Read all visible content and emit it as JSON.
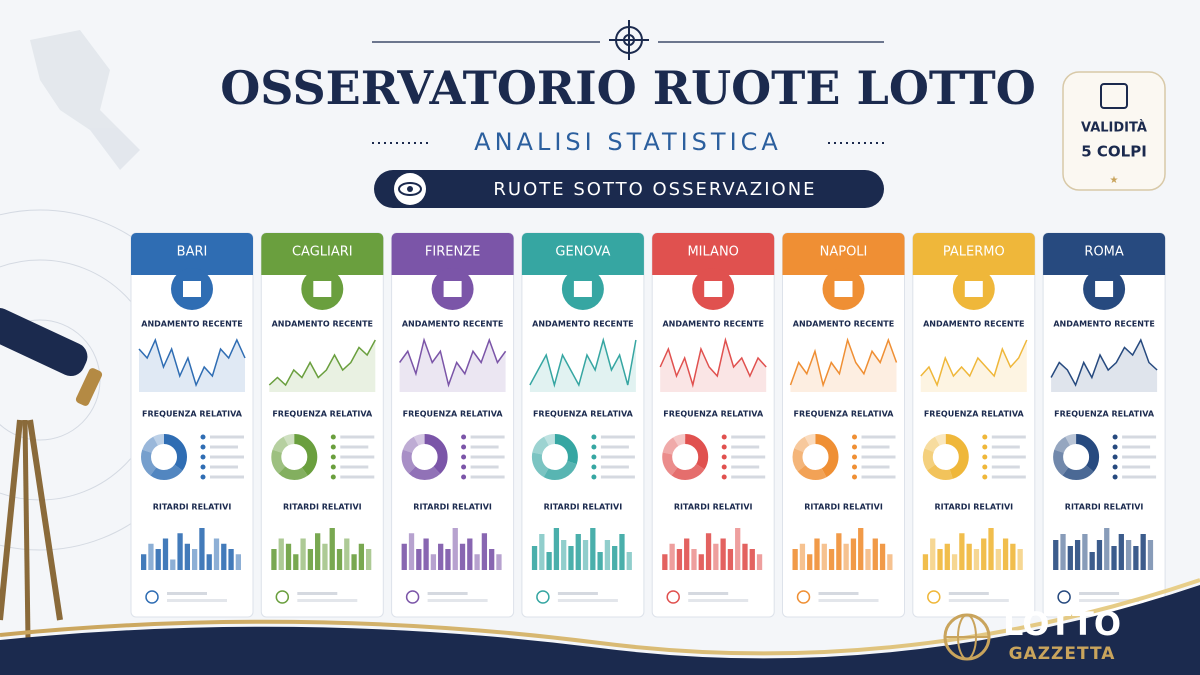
{
  "header": {
    "title": "OSSERVATORIO RUOTE LOTTO",
    "subtitle": "ANALISI STATISTICA",
    "banner": "RUOTE SOTTO OSSERVAZIONE"
  },
  "badge": {
    "line1": "VALIDITÀ",
    "line2": "5 COLPI"
  },
  "section_labels": {
    "trend": "ANDAMENTO RECENTE",
    "frequency": "FREQUENZA RELATIVA",
    "delays": "RITARDI RELATIVI"
  },
  "wheels": [
    {
      "name": "BARI",
      "color": "#2f6db3",
      "trend": [
        6,
        5,
        7,
        4,
        6,
        3,
        5,
        2,
        4,
        3,
        6,
        5,
        7,
        5
      ],
      "frequency": [
        35,
        25,
        20,
        12,
        8
      ],
      "delays": [
        3,
        5,
        4,
        6,
        2,
        7,
        5,
        4,
        8,
        3,
        6,
        5,
        4,
        3
      ]
    },
    {
      "name": "CAGLIARI",
      "color": "#6a9f3e",
      "trend": [
        3,
        4,
        3,
        5,
        4,
        6,
        4,
        5,
        7,
        5,
        6,
        8,
        7,
        9
      ],
      "frequency": [
        40,
        22,
        18,
        12,
        8
      ],
      "delays": [
        4,
        6,
        5,
        3,
        6,
        4,
        7,
        5,
        8,
        4,
        6,
        3,
        5,
        4
      ]
    },
    {
      "name": "FIRENZE",
      "color": "#7b55a8",
      "trend": [
        5,
        6,
        4,
        7,
        5,
        6,
        3,
        5,
        4,
        6,
        5,
        7,
        5,
        6
      ],
      "frequency": [
        38,
        24,
        18,
        12,
        8
      ],
      "delays": [
        5,
        7,
        4,
        6,
        3,
        5,
        4,
        8,
        5,
        6,
        3,
        7,
        4,
        3
      ]
    },
    {
      "name": "GENOVA",
      "color": "#36a6a2",
      "trend": [
        4,
        5,
        6,
        4,
        6,
        5,
        4,
        6,
        5,
        7,
        5,
        6,
        4,
        7
      ],
      "frequency": [
        30,
        28,
        20,
        14,
        8
      ],
      "delays": [
        4,
        6,
        3,
        7,
        5,
        4,
        6,
        5,
        7,
        3,
        5,
        4,
        6,
        3
      ]
    },
    {
      "name": "MILANO",
      "color": "#e0514f",
      "trend": [
        5,
        7,
        4,
        6,
        3,
        7,
        5,
        4,
        8,
        5,
        6,
        4,
        6,
        5
      ],
      "frequency": [
        34,
        26,
        18,
        13,
        9
      ],
      "delays": [
        3,
        5,
        4,
        6,
        4,
        3,
        7,
        5,
        6,
        4,
        8,
        5,
        4,
        3
      ]
    },
    {
      "name": "NAPOLI",
      "color": "#ef8f34",
      "trend": [
        4,
        6,
        5,
        7,
        4,
        6,
        5,
        8,
        6,
        5,
        7,
        6,
        8,
        6
      ],
      "frequency": [
        42,
        22,
        17,
        11,
        8
      ],
      "delays": [
        4,
        5,
        3,
        6,
        5,
        4,
        7,
        5,
        6,
        8,
        4,
        6,
        5,
        3
      ]
    },
    {
      "name": "PALERMO",
      "color": "#efb73a",
      "trend": [
        4,
        5,
        3,
        6,
        4,
        5,
        4,
        6,
        5,
        4,
        7,
        5,
        6,
        8
      ],
      "frequency": [
        45,
        20,
        16,
        11,
        8
      ],
      "delays": [
        3,
        6,
        4,
        5,
        3,
        7,
        5,
        4,
        6,
        8,
        4,
        6,
        5,
        4
      ]
    },
    {
      "name": "ROMA",
      "color": "#274a7f",
      "trend": [
        4,
        6,
        5,
        3,
        6,
        4,
        7,
        5,
        6,
        8,
        7,
        9,
        6,
        5
      ],
      "frequency": [
        36,
        24,
        20,
        12,
        8
      ],
      "delays": [
        5,
        6,
        4,
        5,
        6,
        3,
        5,
        7,
        4,
        6,
        5,
        4,
        6,
        5
      ]
    }
  ],
  "logo": {
    "line1": "LOTTO",
    "line2": "GAZZETTA"
  }
}
